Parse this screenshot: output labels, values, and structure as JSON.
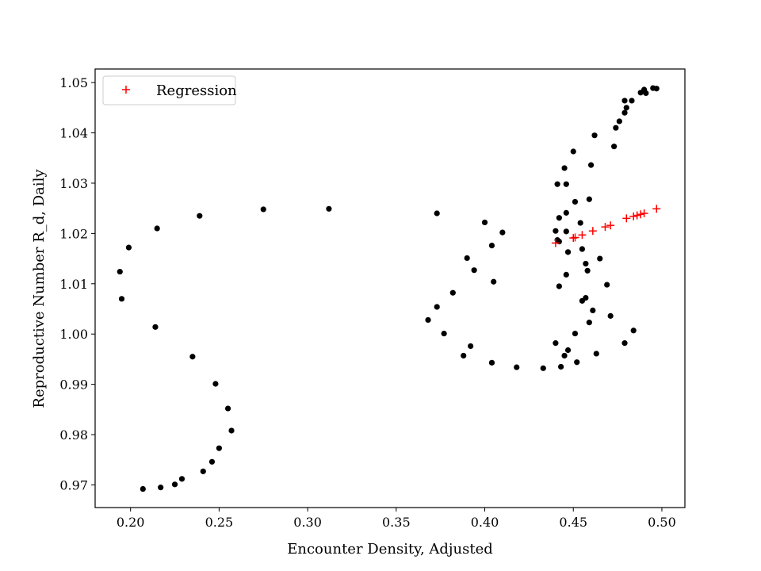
{
  "chart_data": {
    "type": "scatter",
    "title": "",
    "xlabel": "Encounter Density, Adjusted",
    "ylabel": "Reproductive Number R_d, Daily",
    "xlim": [
      0.18,
      0.513
    ],
    "ylim": [
      0.9655,
      1.0527
    ],
    "xticks": [
      0.2,
      0.25,
      0.3,
      0.35,
      0.4,
      0.45,
      0.5
    ],
    "xtick_labels": [
      "0.20",
      "0.25",
      "0.30",
      "0.35",
      "0.40",
      "0.45",
      "0.50"
    ],
    "yticks": [
      0.97,
      0.98,
      0.99,
      1.0,
      1.01,
      1.02,
      1.03,
      1.04,
      1.05
    ],
    "ytick_labels": [
      "0.97",
      "0.98",
      "0.99",
      "1.00",
      "1.01",
      "1.02",
      "1.03",
      "1.04",
      "1.05"
    ],
    "grid": false,
    "legend_position": "top-left",
    "series": [
      {
        "marker": "dot",
        "color": "#000000",
        "points": [
          [
            0.207,
            0.9692
          ],
          [
            0.217,
            0.9695
          ],
          [
            0.225,
            0.9701
          ],
          [
            0.229,
            0.9712
          ],
          [
            0.241,
            0.9727
          ],
          [
            0.246,
            0.9746
          ],
          [
            0.25,
            0.9773
          ],
          [
            0.257,
            0.9808
          ],
          [
            0.255,
            0.9852
          ],
          [
            0.248,
            0.9901
          ],
          [
            0.235,
            0.9955
          ],
          [
            0.214,
            1.0014
          ],
          [
            0.195,
            1.007
          ],
          [
            0.194,
            1.0124
          ],
          [
            0.199,
            1.0172
          ],
          [
            0.215,
            1.021
          ],
          [
            0.239,
            1.0235
          ],
          [
            0.275,
            1.0248
          ],
          [
            0.312,
            1.0249
          ],
          [
            0.373,
            1.024
          ],
          [
            0.4,
            1.0222
          ],
          [
            0.41,
            1.0202
          ],
          [
            0.404,
            1.0176
          ],
          [
            0.39,
            1.0151
          ],
          [
            0.394,
            1.0127
          ],
          [
            0.405,
            1.0104
          ],
          [
            0.382,
            1.0082
          ],
          [
            0.373,
            1.0054
          ],
          [
            0.368,
            1.0028
          ],
          [
            0.377,
            1.0001
          ],
          [
            0.392,
            0.9976
          ],
          [
            0.388,
            0.9957
          ],
          [
            0.404,
            0.9943
          ],
          [
            0.418,
            0.9934
          ],
          [
            0.433,
            0.9932
          ],
          [
            0.443,
            0.9935
          ],
          [
            0.452,
            0.9944
          ],
          [
            0.445,
            0.9957
          ],
          [
            0.447,
            0.9968
          ],
          [
            0.44,
            0.9982
          ],
          [
            0.451,
            1.0001
          ],
          [
            0.463,
            0.9961
          ],
          [
            0.459,
            1.0023
          ],
          [
            0.461,
            1.0047
          ],
          [
            0.455,
            1.0066
          ],
          [
            0.457,
            1.0072
          ],
          [
            0.442,
            1.0095
          ],
          [
            0.446,
            1.0118
          ],
          [
            0.458,
            1.0126
          ],
          [
            0.457,
            1.014
          ],
          [
            0.447,
            1.0163
          ],
          [
            0.455,
            1.0169
          ],
          [
            0.442,
            1.0184
          ],
          [
            0.441,
            1.0187
          ],
          [
            0.44,
            1.0205
          ],
          [
            0.446,
            1.0204
          ],
          [
            0.454,
            1.0221
          ],
          [
            0.442,
            1.0231
          ],
          [
            0.446,
            1.0241
          ],
          [
            0.451,
            1.0263
          ],
          [
            0.459,
            1.0268
          ],
          [
            0.441,
            1.0298
          ],
          [
            0.446,
            1.0298
          ],
          [
            0.445,
            1.033
          ],
          [
            0.46,
            1.0336
          ],
          [
            0.45,
            1.0363
          ],
          [
            0.462,
            1.0395
          ],
          [
            0.473,
            1.0373
          ],
          [
            0.474,
            1.041
          ],
          [
            0.476,
            1.0423
          ],
          [
            0.479,
            1.044
          ],
          [
            0.48,
            1.045
          ],
          [
            0.479,
            1.0464
          ],
          [
            0.483,
            1.0464
          ],
          [
            0.488,
            1.048
          ],
          [
            0.49,
            1.0486
          ],
          [
            0.491,
            1.0479
          ],
          [
            0.495,
            1.0489
          ],
          [
            0.497,
            1.0488
          ],
          [
            0.465,
            1.015
          ],
          [
            0.469,
            1.0098
          ],
          [
            0.471,
            1.0036
          ],
          [
            0.479,
            0.9982
          ],
          [
            0.484,
            1.0007
          ]
        ]
      },
      {
        "name": "Regression",
        "marker": "plus",
        "color": "#ff0000",
        "points": [
          [
            0.44,
            1.0181
          ],
          [
            0.45,
            1.0191
          ],
          [
            0.451,
            1.0192
          ],
          [
            0.455,
            1.0197
          ],
          [
            0.461,
            1.0205
          ],
          [
            0.468,
            1.0213
          ],
          [
            0.471,
            1.0216
          ],
          [
            0.48,
            1.023
          ],
          [
            0.484,
            1.0234
          ],
          [
            0.486,
            1.0236
          ],
          [
            0.488,
            1.0238
          ],
          [
            0.49,
            1.024
          ],
          [
            0.497,
            1.0249
          ]
        ]
      }
    ]
  }
}
